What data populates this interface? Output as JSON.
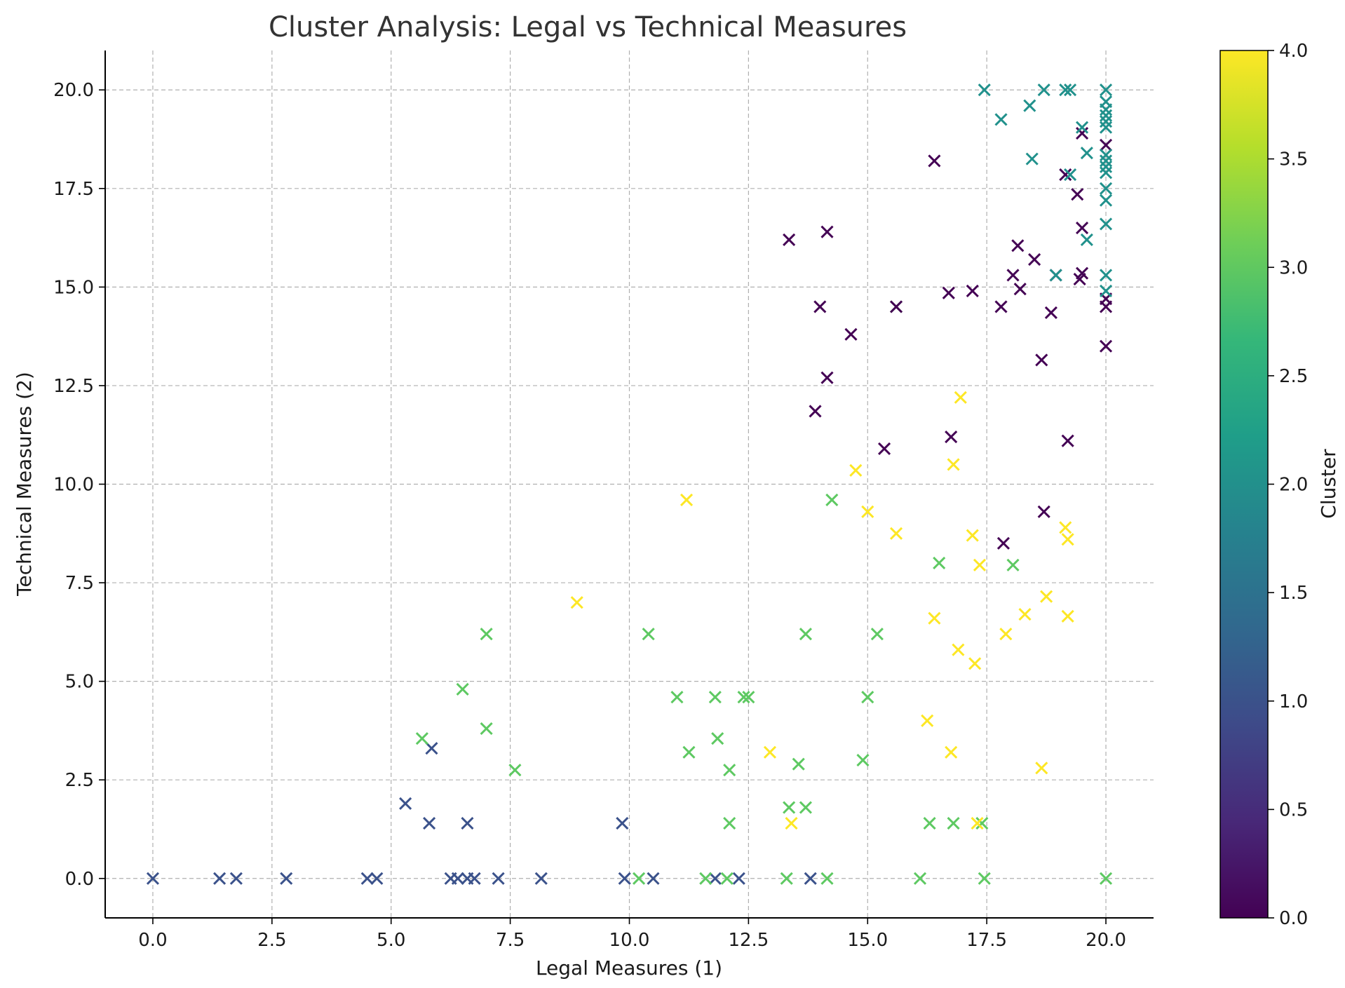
{
  "chart_data": {
    "type": "scatter",
    "title": "Cluster Analysis: Legal vs Technical Measures",
    "xlabel": "Legal Measures (1)",
    "ylabel": "Technical Measures (2)",
    "xlim": [
      -1,
      21
    ],
    "ylim": [
      -1,
      21
    ],
    "x_ticks": [
      0.0,
      2.5,
      5.0,
      7.5,
      10.0,
      12.5,
      15.0,
      17.5,
      20.0
    ],
    "x_tick_labels": [
      "0.0",
      "2.5",
      "5.0",
      "7.5",
      "10.0",
      "12.5",
      "15.0",
      "17.5",
      "20.0"
    ],
    "y_ticks": [
      0.0,
      2.5,
      5.0,
      7.5,
      10.0,
      12.5,
      15.0,
      17.5,
      20.0
    ],
    "y_tick_labels": [
      "0.0",
      "2.5",
      "5.0",
      "7.5",
      "10.0",
      "12.5",
      "15.0",
      "17.5",
      "20.0"
    ],
    "grid": true,
    "marker": "x",
    "colormap": "viridis",
    "colorbar": {
      "label": "Cluster",
      "range": [
        0.0,
        4.0
      ],
      "ticks": [
        0.0,
        0.5,
        1.0,
        1.5,
        2.0,
        2.5,
        3.0,
        3.5,
        4.0
      ],
      "tick_labels": [
        "0.0",
        "0.5",
        "1.0",
        "1.5",
        "2.0",
        "2.5",
        "3.0",
        "3.5",
        "4.0"
      ],
      "stops": [
        "#440154",
        "#482878",
        "#3e4a89",
        "#31688e",
        "#26828e",
        "#1f9e89",
        "#35b779",
        "#6ece58",
        "#b5de2b",
        "#fde725"
      ]
    },
    "cluster_colors": {
      "0": "#440154",
      "1": "#3b528b",
      "2": "#21918c",
      "3": "#5ec962",
      "4": "#fde725"
    },
    "points": [
      [
        0.0,
        0.0,
        1
      ],
      [
        1.4,
        0.0,
        1
      ],
      [
        1.75,
        0.0,
        1
      ],
      [
        2.8,
        0.0,
        1
      ],
      [
        4.5,
        0.0,
        1
      ],
      [
        4.7,
        0.0,
        1
      ],
      [
        6.25,
        0.0,
        1
      ],
      [
        6.4,
        0.0,
        1
      ],
      [
        6.6,
        0.0,
        1
      ],
      [
        6.75,
        0.0,
        1
      ],
      [
        7.25,
        0.0,
        1
      ],
      [
        8.15,
        0.0,
        1
      ],
      [
        9.9,
        0.0,
        1
      ],
      [
        10.5,
        0.0,
        1
      ],
      [
        11.8,
        0.0,
        1
      ],
      [
        12.3,
        0.0,
        1
      ],
      [
        13.8,
        0.0,
        1
      ],
      [
        5.3,
        1.9,
        1
      ],
      [
        5.8,
        1.4,
        1
      ],
      [
        5.85,
        3.3,
        1
      ],
      [
        6.6,
        1.4,
        1
      ],
      [
        9.85,
        1.4,
        1
      ],
      [
        10.2,
        0.0,
        3
      ],
      [
        11.6,
        0.0,
        3
      ],
      [
        12.05,
        0.0,
        3
      ],
      [
        13.3,
        0.0,
        3
      ],
      [
        14.15,
        0.0,
        3
      ],
      [
        16.1,
        0.0,
        3
      ],
      [
        17.45,
        0.0,
        3
      ],
      [
        20.0,
        0.0,
        3
      ],
      [
        5.65,
        3.55,
        3
      ],
      [
        6.5,
        4.8,
        3
      ],
      [
        7.0,
        3.8,
        3
      ],
      [
        7.0,
        6.2,
        3
      ],
      [
        7.6,
        2.75,
        3
      ],
      [
        10.4,
        6.2,
        3
      ],
      [
        11.0,
        4.6,
        3
      ],
      [
        11.25,
        3.2,
        3
      ],
      [
        11.8,
        4.6,
        3
      ],
      [
        11.85,
        3.55,
        3
      ],
      [
        12.1,
        2.75,
        3
      ],
      [
        12.1,
        1.4,
        3
      ],
      [
        12.4,
        4.6,
        3
      ],
      [
        12.5,
        4.6,
        3
      ],
      [
        13.35,
        1.8,
        3
      ],
      [
        13.55,
        2.9,
        3
      ],
      [
        13.7,
        1.8,
        3
      ],
      [
        13.7,
        6.2,
        3
      ],
      [
        14.25,
        9.6,
        3
      ],
      [
        14.9,
        3.0,
        3
      ],
      [
        15.0,
        4.6,
        3
      ],
      [
        15.2,
        6.2,
        3
      ],
      [
        15.6,
        14.5,
        3
      ],
      [
        16.3,
        1.4,
        3
      ],
      [
        16.5,
        8.0,
        3
      ],
      [
        16.8,
        1.4,
        3
      ],
      [
        17.4,
        1.4,
        3
      ],
      [
        18.05,
        7.95,
        3
      ],
      [
        8.9,
        7.0,
        4
      ],
      [
        11.2,
        9.6,
        4
      ],
      [
        12.95,
        3.2,
        4
      ],
      [
        13.4,
        1.4,
        4
      ],
      [
        14.75,
        10.35,
        4
      ],
      [
        15.0,
        9.3,
        4
      ],
      [
        15.6,
        8.75,
        4
      ],
      [
        16.25,
        4.0,
        4
      ],
      [
        16.4,
        6.6,
        4
      ],
      [
        16.75,
        3.2,
        4
      ],
      [
        16.8,
        10.5,
        4
      ],
      [
        16.9,
        5.8,
        4
      ],
      [
        16.95,
        12.2,
        4
      ],
      [
        17.2,
        8.7,
        4
      ],
      [
        17.25,
        5.45,
        4
      ],
      [
        17.3,
        1.4,
        4
      ],
      [
        17.35,
        7.95,
        4
      ],
      [
        17.9,
        6.2,
        4
      ],
      [
        18.3,
        6.7,
        4
      ],
      [
        18.65,
        2.8,
        4
      ],
      [
        18.75,
        7.15,
        4
      ],
      [
        19.15,
        8.9,
        4
      ],
      [
        19.2,
        8.6,
        4
      ],
      [
        19.2,
        6.65,
        4
      ],
      [
        13.35,
        16.2,
        0
      ],
      [
        13.9,
        11.85,
        0
      ],
      [
        14.0,
        14.5,
        0
      ],
      [
        14.15,
        12.7,
        0
      ],
      [
        14.15,
        16.4,
        0
      ],
      [
        14.65,
        13.8,
        0
      ],
      [
        15.35,
        10.9,
        0
      ],
      [
        15.6,
        14.5,
        0
      ],
      [
        16.4,
        18.2,
        0
      ],
      [
        16.7,
        14.85,
        0
      ],
      [
        16.75,
        11.2,
        0
      ],
      [
        17.2,
        14.9,
        0
      ],
      [
        17.8,
        14.5,
        0
      ],
      [
        17.85,
        8.5,
        0
      ],
      [
        18.05,
        15.3,
        0
      ],
      [
        18.15,
        16.05,
        0
      ],
      [
        18.2,
        14.95,
        0
      ],
      [
        18.5,
        15.7,
        0
      ],
      [
        18.65,
        13.15,
        0
      ],
      [
        18.7,
        9.3,
        0
      ],
      [
        18.85,
        14.35,
        0
      ],
      [
        18.95,
        15.3,
        0
      ],
      [
        19.15,
        17.85,
        0
      ],
      [
        19.2,
        11.1,
        0
      ],
      [
        19.4,
        17.35,
        0
      ],
      [
        19.45,
        15.2,
        0
      ],
      [
        19.5,
        15.35,
        0
      ],
      [
        19.5,
        16.5,
        0
      ],
      [
        19.5,
        18.9,
        0
      ],
      [
        20.0,
        18.6,
        0
      ],
      [
        20.0,
        14.7,
        0
      ],
      [
        20.0,
        14.5,
        0
      ],
      [
        20.0,
        13.5,
        0
      ],
      [
        17.45,
        20.0,
        2
      ],
      [
        17.8,
        19.25,
        2
      ],
      [
        18.4,
        19.6,
        2
      ],
      [
        18.45,
        18.25,
        2
      ],
      [
        18.7,
        20.0,
        2
      ],
      [
        18.95,
        15.3,
        2
      ],
      [
        19.15,
        20.0,
        2
      ],
      [
        19.25,
        20.0,
        2
      ],
      [
        19.25,
        17.85,
        2
      ],
      [
        19.5,
        19.05,
        2
      ],
      [
        19.6,
        18.4,
        2
      ],
      [
        19.6,
        16.2,
        2
      ],
      [
        20.0,
        20.0,
        2
      ],
      [
        20.0,
        19.7,
        2
      ],
      [
        20.0,
        19.5,
        2
      ],
      [
        20.0,
        19.35,
        2
      ],
      [
        20.0,
        19.2,
        2
      ],
      [
        20.0,
        19.05,
        2
      ],
      [
        20.0,
        18.35,
        2
      ],
      [
        20.0,
        18.2,
        2
      ],
      [
        20.0,
        18.05,
        2
      ],
      [
        20.0,
        17.9,
        2
      ],
      [
        20.0,
        17.5,
        2
      ],
      [
        20.0,
        17.2,
        2
      ],
      [
        20.0,
        16.6,
        2
      ],
      [
        20.0,
        15.3,
        2
      ],
      [
        20.0,
        14.9,
        2
      ]
    ]
  }
}
